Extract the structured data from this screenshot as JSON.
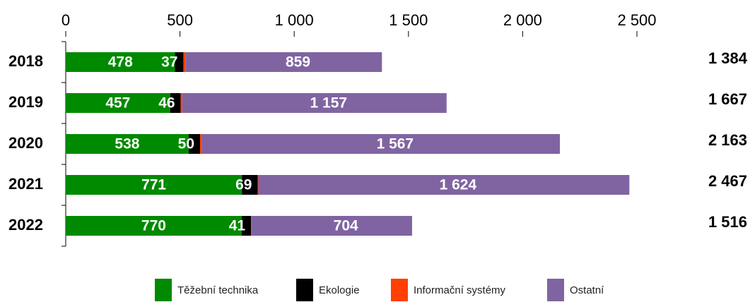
{
  "chart_data": {
    "type": "stacked-barh",
    "categories": [
      "2018",
      "2019",
      "2020",
      "2021",
      "2022"
    ],
    "series": [
      {
        "name": "Těžební technika",
        "color": "#008a00",
        "values": [
          478,
          457,
          538,
          771,
          770
        ]
      },
      {
        "name": "Ekologie",
        "color": "#000000",
        "values": [
          37,
          46,
          50,
          69,
          41
        ]
      },
      {
        "name": "Informační systémy",
        "color": "#ff4000",
        "values": [
          10,
          7,
          8,
          3,
          1
        ]
      },
      {
        "name": "Ostatní",
        "color": "#8064a2",
        "values": [
          859,
          1157,
          1567,
          1624,
          704
        ],
        "value_labels": [
          "859",
          "1 157",
          "1 567",
          "1 624",
          "704"
        ]
      }
    ],
    "totals": {
      "values": [
        1384,
        1667,
        2163,
        2467,
        1516
      ],
      "value_labels": [
        "1 384",
        "1 667",
        "2 163",
        "2 467",
        "1 516"
      ]
    },
    "xlim": [
      0,
      2500
    ],
    "xticks": [
      0,
      500,
      {
        "value": 1000,
        "label": "1 000"
      },
      {
        "value": 1500,
        "label": "1 500"
      },
      {
        "value": 2000,
        "label": "2 000"
      },
      {
        "value": 2500,
        "label": "2 500"
      }
    ]
  }
}
